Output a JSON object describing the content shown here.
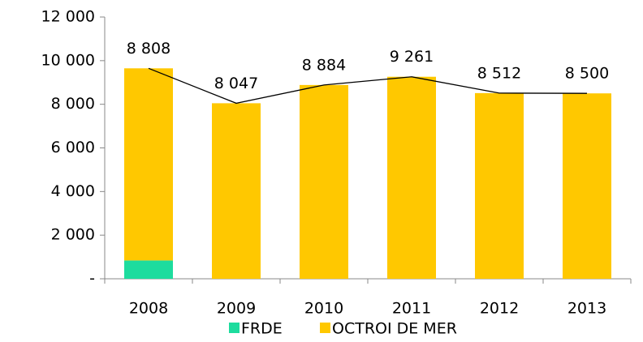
{
  "chart_data": {
    "type": "stacked_bar",
    "categories": [
      "2008",
      "2009",
      "2010",
      "2011",
      "2012",
      "2013"
    ],
    "series": [
      {
        "name": "FRDE",
        "color": "#1ddc9e",
        "values": [
          840,
          0,
          0,
          0,
          0,
          0
        ]
      },
      {
        "name": "OCTROI DE MER",
        "color": "#ffc800",
        "values": [
          8808,
          8047,
          8884,
          9261,
          8512,
          8500
        ],
        "value_labels": [
          "8 808",
          "8 047",
          "8 884",
          "9 261",
          "8 512",
          "8 500"
        ]
      }
    ],
    "ylim": [
      0,
      12000
    ],
    "yticks": [
      {
        "value": 0,
        "label": "-"
      },
      {
        "value": 2000,
        "label": "2 000"
      },
      {
        "value": 4000,
        "label": "4 000"
      },
      {
        "value": 6000,
        "label": "6 000"
      },
      {
        "value": 8000,
        "label": "8 000"
      },
      {
        "value": 10000,
        "label": "10 000"
      },
      {
        "value": 12000,
        "label": "12 000"
      }
    ],
    "grid": false,
    "legend": "bottom"
  }
}
